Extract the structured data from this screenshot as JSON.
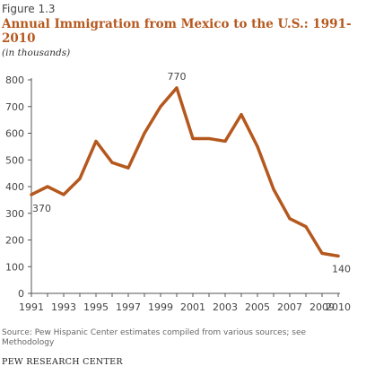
{
  "figure_label": "Figure 1.3",
  "title": "Annual Immigration from Mexico to the U.S.: 1991-2010",
  "subtitle": "(in thousands)",
  "source": "Source: Pew Hispanic Center estimates compiled from various sources; see Methodology",
  "brand": "PEW RESEARCH CENTER",
  "colors": {
    "line": "#b5581e",
    "axis": "#555555",
    "text": "#444444"
  },
  "chart_data": {
    "type": "line",
    "title": "Annual Immigration from Mexico to the U.S.: 1991-2010",
    "xlabel": "",
    "ylabel": "",
    "x": [
      1991,
      1992,
      1993,
      1994,
      1995,
      1996,
      1997,
      1998,
      1999,
      2000,
      2001,
      2002,
      2003,
      2004,
      2005,
      2006,
      2007,
      2008,
      2009,
      2010
    ],
    "series": [
      {
        "values": [
          370,
          400,
          370,
          430,
          570,
          490,
          470,
          600,
          700,
          770,
          580,
          580,
          570,
          670,
          550,
          390,
          280,
          250,
          150,
          140
        ]
      }
    ],
    "x_ticks": [
      "1991",
      "1993",
      "1995",
      "1997",
      "1999",
      "2001",
      "2003",
      "2005",
      "2007",
      "2009",
      "2010"
    ],
    "y_ticks": [
      "0",
      "100",
      "200",
      "300",
      "400",
      "500",
      "600",
      "700",
      "800"
    ],
    "ylim": [
      0,
      800
    ],
    "xlim": [
      1991,
      2010
    ],
    "grid": false,
    "annotations": [
      {
        "x": 1991,
        "y": 370,
        "text": "370"
      },
      {
        "x": 2000,
        "y": 770,
        "text": "770"
      },
      {
        "x": 2010,
        "y": 140,
        "text": "140"
      }
    ]
  }
}
